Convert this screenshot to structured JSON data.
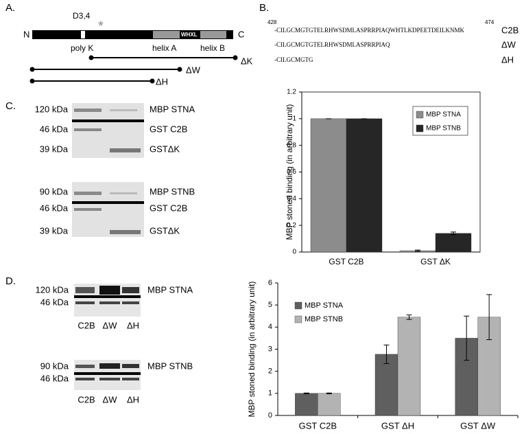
{
  "panel_a": {
    "label": "A.",
    "n_term": "N",
    "c_term": "C",
    "mutation": "D3,4",
    "mutation_mark": "*",
    "domains": [
      "poly K",
      "helix A",
      "WHXL",
      "helix B"
    ],
    "constructs": [
      "ΔK",
      "ΔW",
      "ΔH"
    ]
  },
  "panel_b": {
    "label": "B.",
    "start": 428,
    "end": 474,
    "sequences": [
      {
        "text": "-CILGCMGTGTELRHWSDMLASPRRPIAQWHTLKDPEETDEILKNMK",
        "name": "C2B"
      },
      {
        "text": "-CILGCMGTGTELRHWSDMLASPRRPIAQ",
        "name": "ΔW"
      },
      {
        "text": "-CILGCMGTG",
        "name": "ΔH"
      }
    ]
  },
  "panel_c": {
    "label": "C.",
    "blots": [
      {
        "rows": [
          {
            "size": "120 kDa",
            "name": "MBP STNA"
          },
          {
            "size": "46 kDa",
            "name": "GST C2B"
          },
          {
            "size": "39 kDa",
            "name": "GSTΔK"
          }
        ]
      },
      {
        "rows": [
          {
            "size": "90 kDa",
            "name": "MBP STNB"
          },
          {
            "size": "46 kDa",
            "name": "GST C2B"
          },
          {
            "size": "39 kDa",
            "name": "GSTΔK"
          }
        ]
      }
    ]
  },
  "panel_d": {
    "label": "D.",
    "blots": [
      {
        "rows": [
          {
            "size": "120 kDa",
            "name": "MBP STNA"
          },
          {
            "size": "46 kDa"
          }
        ],
        "lanes": [
          "C2B",
          "ΔW",
          "ΔH"
        ]
      },
      {
        "rows": [
          {
            "size": "90 kDa",
            "name": "MBP STNB"
          },
          {
            "size": "46 kDa"
          }
        ],
        "lanes": [
          "C2B",
          "ΔW",
          "ΔH"
        ]
      }
    ]
  },
  "chart_data": [
    {
      "type": "bar",
      "ylabel": "MBP stoned binding (in arbitrary unit)",
      "categories": [
        "GST C2B",
        "GST ΔK"
      ],
      "series": [
        {
          "name": "MBP STNA",
          "color": "#8c8c8c",
          "values": [
            1,
            0.01
          ],
          "errors": [
            0,
            0.005
          ]
        },
        {
          "name": "MBP STNB",
          "color": "#262626",
          "values": [
            1,
            0.14
          ],
          "errors": [
            0,
            0.01
          ]
        }
      ],
      "ylim": [
        0,
        1.2
      ],
      "yticks": [
        0,
        0.2,
        0.4,
        0.6,
        0.8,
        1,
        1.2
      ],
      "legend": "upper right"
    },
    {
      "type": "bar",
      "ylabel": "MBP stoned binding (in arbitrary unit)",
      "categories": [
        "GST C2B",
        "GST ΔH",
        "GST ΔW"
      ],
      "series": [
        {
          "name": "MBP STNA",
          "color": "#5f5f5f",
          "values": [
            1,
            2.77,
            3.5
          ],
          "errors": [
            0.02,
            0.42,
            1.0
          ]
        },
        {
          "name": "MBP STNB",
          "color": "#b3b3b3",
          "values": [
            1,
            4.45,
            4.45
          ],
          "errors": [
            0.02,
            0.1,
            1.02
          ]
        }
      ],
      "ylim": [
        0,
        6
      ],
      "yticks": [
        0,
        1,
        2,
        3,
        4,
        5,
        6
      ],
      "legend": "upper left"
    }
  ]
}
